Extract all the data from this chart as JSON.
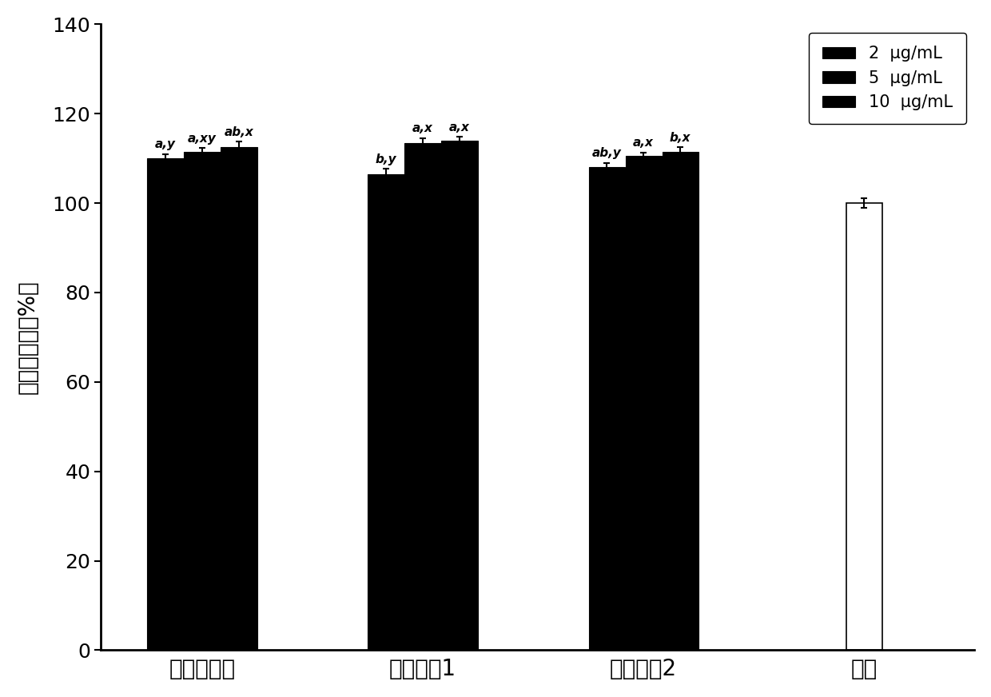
{
  "groups": [
    "粗知母多糖",
    "精制组分1",
    "精制组分2",
    "对照"
  ],
  "series_labels": [
    "2  μg/mL",
    "5  μg/mL",
    "10  μg/mL"
  ],
  "values": [
    [
      110.0,
      111.5,
      112.5
    ],
    [
      106.5,
      113.5,
      114.0
    ],
    [
      108.0,
      110.5,
      111.5
    ],
    [
      100.0,
      null,
      null
    ]
  ],
  "errors": [
    [
      1.0,
      0.8,
      1.2
    ],
    [
      1.2,
      1.0,
      0.8
    ],
    [
      1.0,
      0.8,
      1.0
    ],
    [
      1.0,
      null,
      null
    ]
  ],
  "bar_color": "#000000",
  "control_color": "#ffffff",
  "control_edgecolor": "#000000",
  "ylim": [
    0,
    140
  ],
  "yticks": [
    0,
    20,
    40,
    60,
    80,
    100,
    120,
    140
  ],
  "ylabel": "细胞增殖率（%）",
  "ylabel_fontsize": 20,
  "tick_fontsize": 18,
  "xlabel_fontsize": 20,
  "legend_fontsize": 15,
  "annotation_fontsize": 11,
  "annotations": [
    [
      "a,y",
      "a,xy",
      "ab,x"
    ],
    [
      "b,y",
      "a,x",
      "a,x"
    ],
    [
      "ab,y",
      "a,x",
      "b,x"
    ]
  ],
  "bar_width": 0.2,
  "background_color": "#ffffff",
  "figure_width": 12.4,
  "figure_height": 8.72
}
